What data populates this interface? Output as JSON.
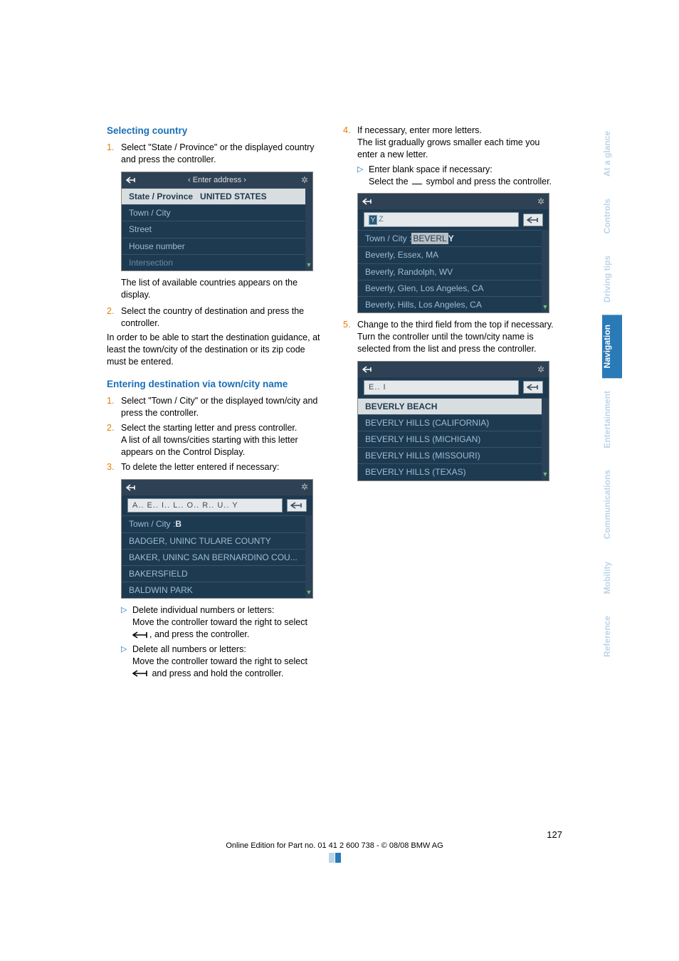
{
  "headings": {
    "selecting_country": "Selecting country",
    "entering_dest": "Entering destination via town/city name"
  },
  "left": {
    "step1": "Select \"State / Province\" or the displayed country and press the controller.",
    "after_ss1": "The list of available countries appears on the display.",
    "step2": "Select the country of destination and press the controller.",
    "para_after": "In order to be able to start the destination guidance, at least the town/city of the destination or its zip code must be entered.",
    "ed_step1": "Select \"Town / City\" or the displayed town/city and press the controller.",
    "ed_step2": "Select the starting letter and press controller.",
    "ed_step2b": "A list of all towns/cities starting with this letter appears on the Control Display.",
    "ed_step3": "To delete the letter entered if necessary:",
    "tri1a": "Delete individual numbers or letters:",
    "tri1b": "Move the controller toward the right to select",
    "tri1c": ", and press the controller.",
    "tri2a": "Delete all numbers or letters:",
    "tri2b": "Move the controller toward the right to select",
    "tri2c": " and press and hold the controller."
  },
  "right": {
    "step4a": "If necessary, enter more letters.",
    "step4b": "The list gradually grows smaller each time you enter a new letter.",
    "tri_a": "Enter blank space if necessary:",
    "tri_b": "Select the ",
    "tri_c": " symbol and press the controller.",
    "step5": "Change to the third field from the top if necessary. Turn the controller until the town/city name is selected from the list and press the controller."
  },
  "ss1": {
    "title": "‹ Enter address ›",
    "rows": [
      {
        "label": "State / Province",
        "value": "UNITED STATES",
        "hl": true
      },
      {
        "label": "Town / City"
      },
      {
        "label": "Street"
      },
      {
        "label": "House number"
      },
      {
        "label": "Intersection",
        "muted": true
      }
    ]
  },
  "ss2": {
    "input": "A..  E..  I..  L..  O..  R..  U..  Y",
    "towncity_label": "Town / City : ",
    "towncity_val": "B",
    "rows": [
      "BADGER, UNINC TULARE COUNTY",
      "BAKER, UNINC SAN BERNARDINO COU...",
      "BAKERSFIELD",
      "BALDWIN PARK"
    ]
  },
  "ss3": {
    "input_cursor": "Y",
    "input_after": "Z",
    "towncity_label": "Town / City : ",
    "towncity_prefix": "BEVERL",
    "towncity_suffix": " Y",
    "rows": [
      "Beverly, Essex, MA",
      "Beverly, Randolph, WV",
      "Beverly, Glen, Los Angeles, CA",
      "Beverly, Hills, Los Angeles, CA"
    ]
  },
  "ss4": {
    "input": "E..  I",
    "rows": [
      {
        "label": "BEVERLY BEACH",
        "hl": true
      },
      {
        "label": "BEVERLY HILLS (CALIFORNIA)"
      },
      {
        "label": "BEVERLY HILLS (MICHIGAN)"
      },
      {
        "label": "BEVERLY HILLS (MISSOURI)"
      },
      {
        "label": "BEVERLY HILLS (TEXAS)"
      }
    ]
  },
  "tabs": [
    {
      "label": "At a glance",
      "active": false
    },
    {
      "label": "Controls",
      "active": false
    },
    {
      "label": "Driving tips",
      "active": false
    },
    {
      "label": "Navigation",
      "active": true
    },
    {
      "label": "Entertainment",
      "active": false
    },
    {
      "label": "Communications",
      "active": false
    },
    {
      "label": "Mobility",
      "active": false
    },
    {
      "label": "Reference",
      "active": false
    }
  ],
  "footer": {
    "page": "127",
    "line": "Online Edition for Part no. 01 41 2 600 738 - © 08/08 BMW AG"
  },
  "colors": {
    "heading": "#1a6fb8",
    "numcolor": "#e87c00",
    "tab_active_bg": "#2a7ab8",
    "tab_inactive_fg": "#bcd4e8",
    "ss_header_bg": "#2f4255",
    "ss_row_bg": "#1e3a50",
    "ss_row_fg": "#9bbdd6",
    "ss_hl_bg": "#d8dde0",
    "ss_hl_fg": "#1e3a50"
  }
}
